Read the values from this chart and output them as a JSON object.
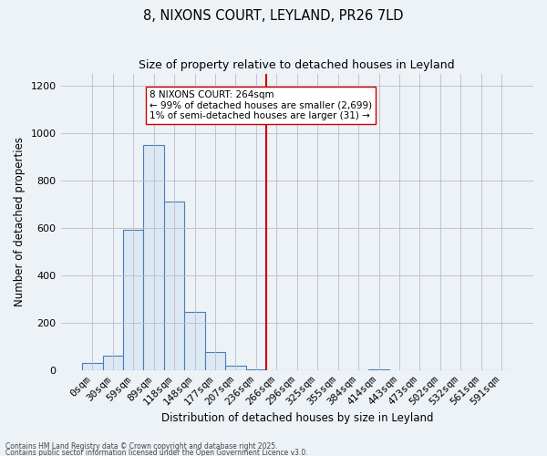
{
  "title": "8, NIXONS COURT, LEYLAND, PR26 7LD",
  "subtitle": "Size of property relative to detached houses in Leyland",
  "xlabel": "Distribution of detached houses by size in Leyland",
  "ylabel": "Number of detached properties",
  "bar_color": "#dce9f5",
  "bar_edge_color": "#4a7db5",
  "vline_color": "#cc0000",
  "categories": [
    "0sqm",
    "30sqm",
    "59sqm",
    "89sqm",
    "118sqm",
    "148sqm",
    "177sqm",
    "207sqm",
    "236sqm",
    "266sqm",
    "296sqm",
    "325sqm",
    "355sqm",
    "384sqm",
    "414sqm",
    "443sqm",
    "473sqm",
    "502sqm",
    "532sqm",
    "561sqm",
    "591sqm"
  ],
  "values": [
    30,
    60,
    590,
    950,
    710,
    245,
    75,
    20,
    5,
    0,
    0,
    0,
    0,
    0,
    5,
    0,
    0,
    0,
    0,
    0,
    0
  ],
  "vline_index": 9,
  "annotation_lines": [
    "8 NIXONS COURT: 264sqm",
    "← 99% of detached houses are smaller (2,699)",
    "1% of semi-detached houses are larger (31) →"
  ],
  "ylim": [
    0,
    1250
  ],
  "yticks": [
    0,
    200,
    400,
    600,
    800,
    1000,
    1200
  ],
  "bg_color": "#edf2f7",
  "footer1": "Contains HM Land Registry data © Crown copyright and database right 2025.",
  "footer2": "Contains public sector information licensed under the Open Government Licence v3.0."
}
